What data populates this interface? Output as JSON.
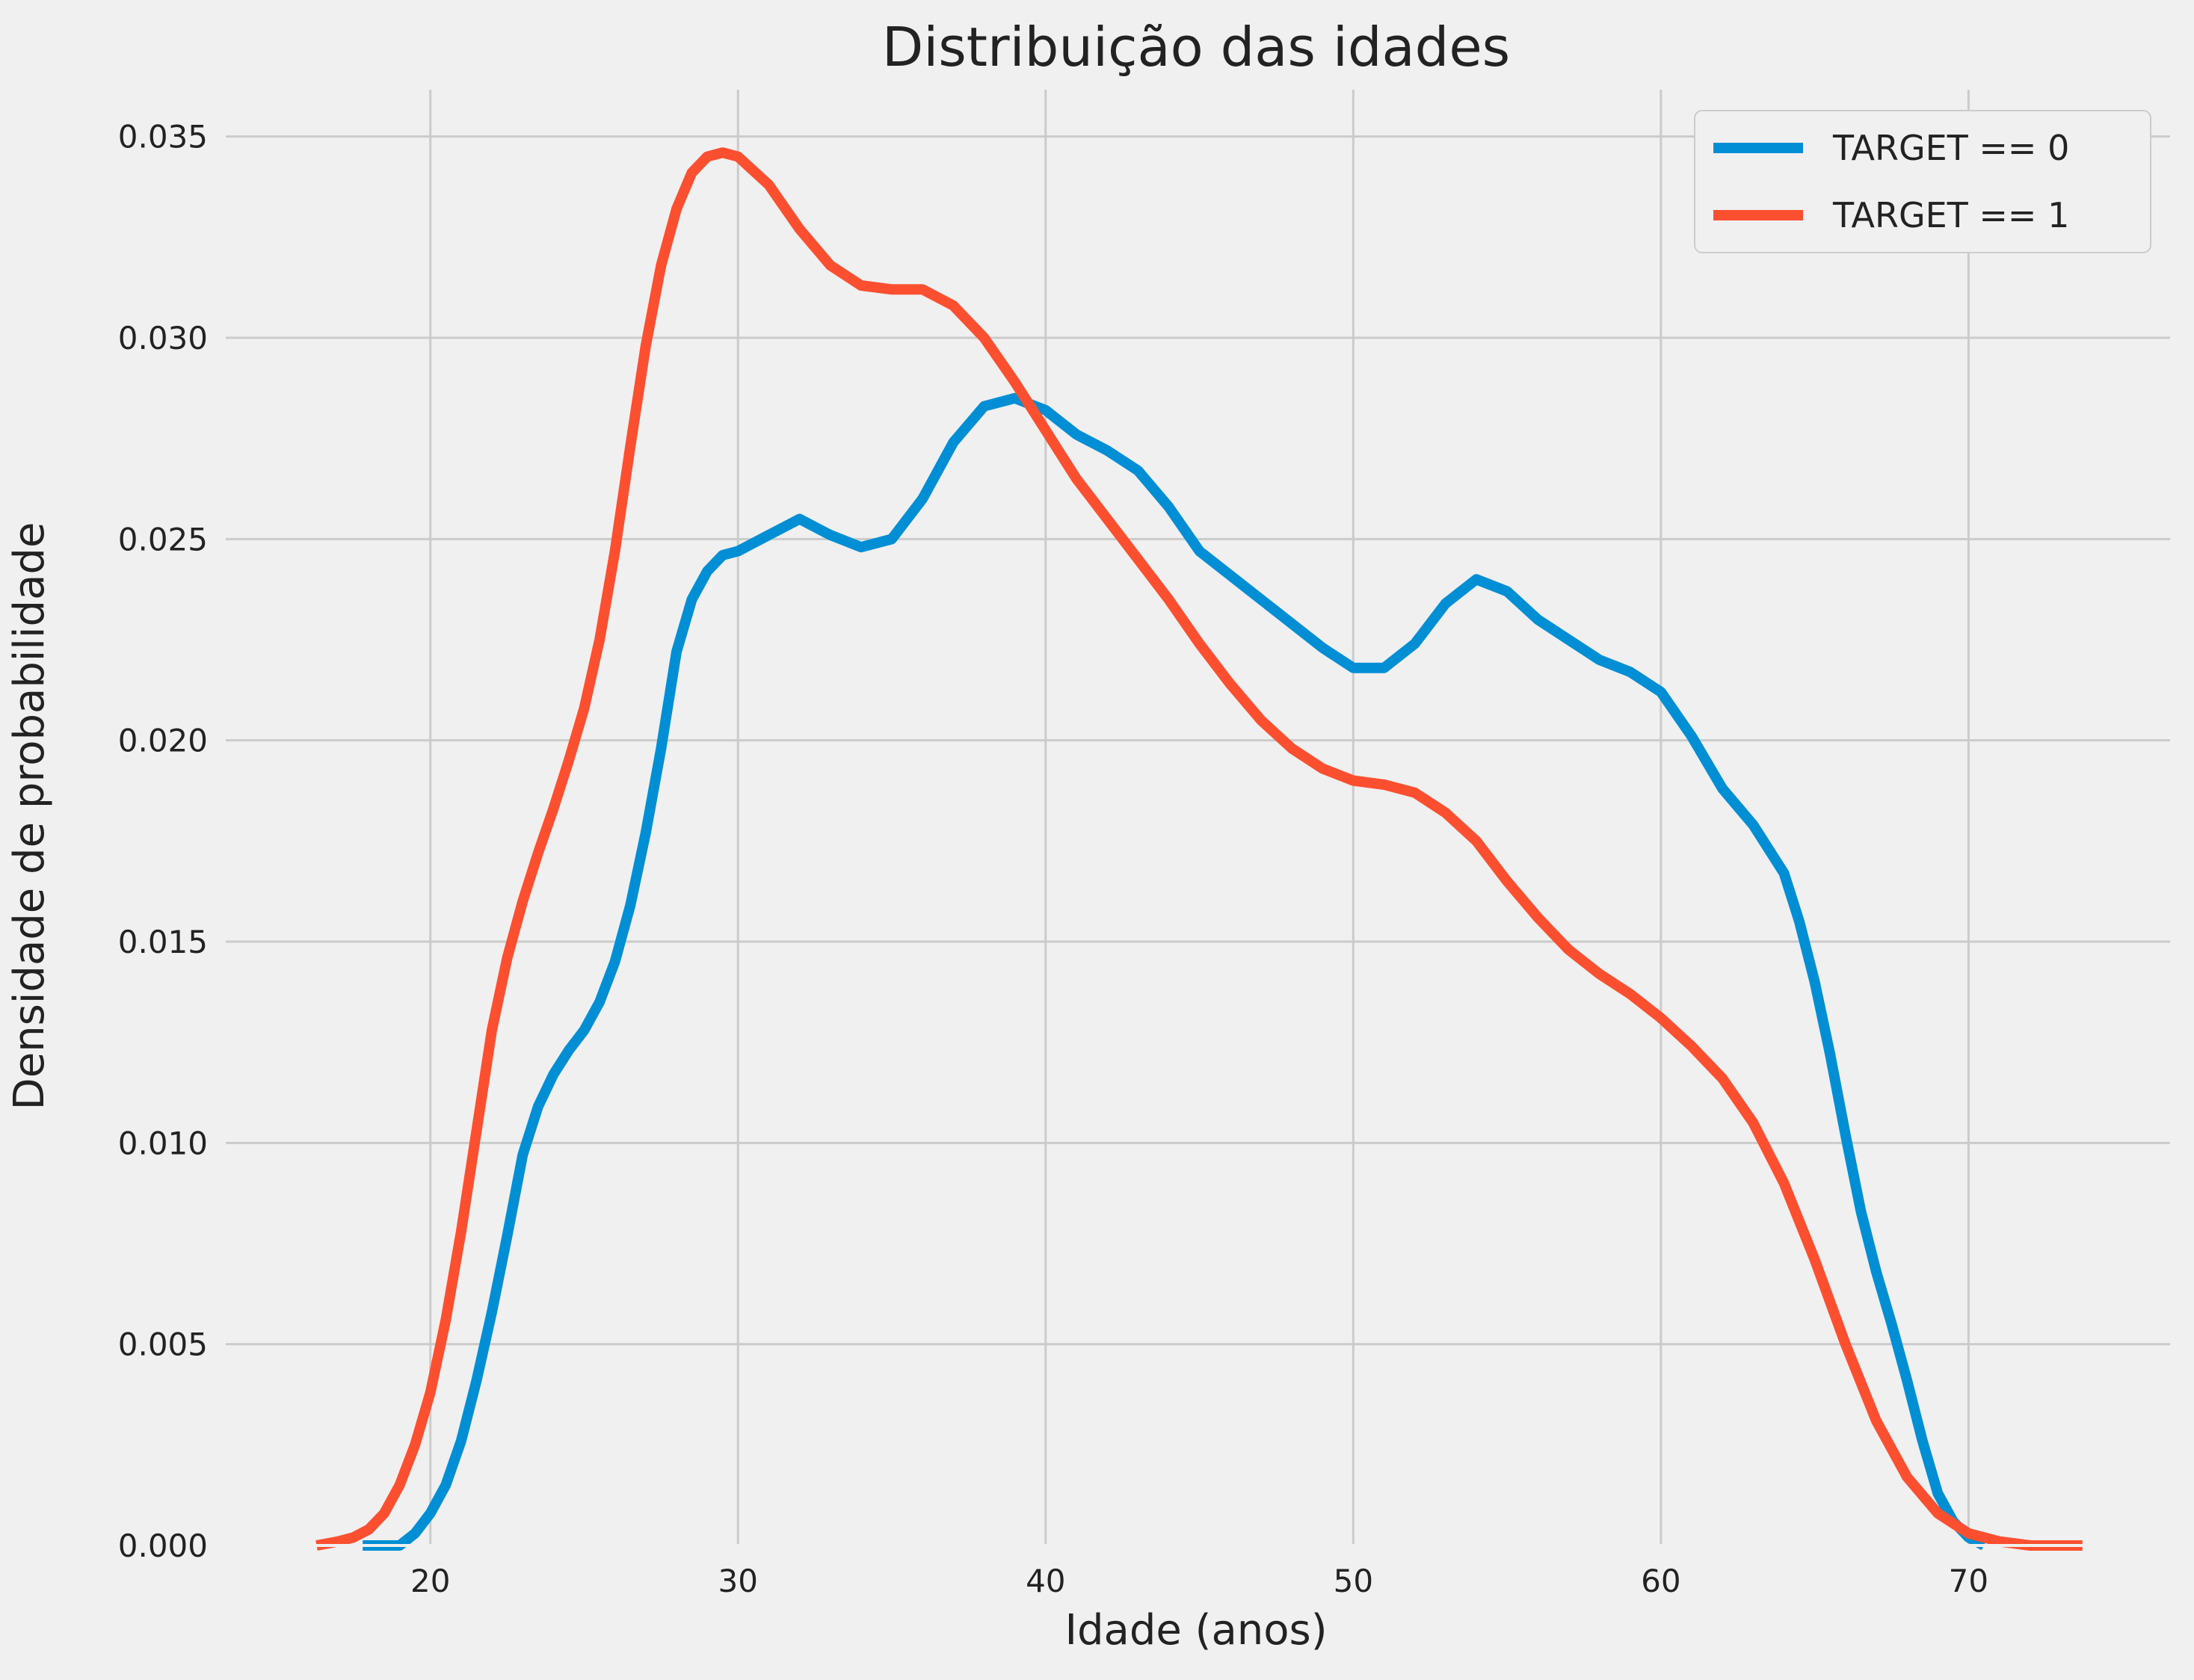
{
  "chart_data": {
    "type": "line",
    "title": "Distribuição das idades",
    "xlabel": "Idade (anos)",
    "ylabel": "Densidade de probabilidade",
    "xlim": [
      13.3,
      76.6
    ],
    "ylim": [
      0,
      0.0362
    ],
    "xticks": [
      20,
      30,
      40,
      50,
      60,
      70
    ],
    "xtick_labels": [
      "20",
      "30",
      "40",
      "50",
      "60",
      "70"
    ],
    "yticks": [
      0,
      0.005,
      0.01,
      0.015,
      0.02,
      0.025,
      0.03,
      0.035
    ],
    "ytick_labels": [
      "0.000",
      "0.005",
      "0.010",
      "0.015",
      "0.020",
      "0.025",
      "0.030",
      "0.035"
    ],
    "grid": true,
    "legend_position": "top-right",
    "colors": {
      "background": "#f0f0f0",
      "grid": "#cbcbcb"
    },
    "series": [
      {
        "name": "TARGET == 0",
        "color": "#008fd5",
        "points": [
          [
            17.8,
            0.0
          ],
          [
            19,
            0.0
          ],
          [
            19.5,
            0.0003
          ],
          [
            20,
            0.0008
          ],
          [
            20.5,
            0.0015
          ],
          [
            21,
            0.0026
          ],
          [
            21.5,
            0.0041
          ],
          [
            22,
            0.0058
          ],
          [
            22.5,
            0.0077
          ],
          [
            23,
            0.0097
          ],
          [
            23.5,
            0.0109
          ],
          [
            24,
            0.0117
          ],
          [
            24.5,
            0.0123
          ],
          [
            25,
            0.0128
          ],
          [
            25.5,
            0.0135
          ],
          [
            26,
            0.0145
          ],
          [
            26.5,
            0.0159
          ],
          [
            27,
            0.0177
          ],
          [
            27.5,
            0.0198
          ],
          [
            28,
            0.0222
          ],
          [
            28.5,
            0.0235
          ],
          [
            29,
            0.0242
          ],
          [
            29.5,
            0.0246
          ],
          [
            30,
            0.0247
          ],
          [
            31,
            0.0251
          ],
          [
            32,
            0.0255
          ],
          [
            33,
            0.0251
          ],
          [
            34,
            0.0248
          ],
          [
            35,
            0.025
          ],
          [
            36,
            0.026
          ],
          [
            37,
            0.0274
          ],
          [
            38,
            0.0283
          ],
          [
            39,
            0.0285
          ],
          [
            40,
            0.0282
          ],
          [
            41,
            0.0276
          ],
          [
            42,
            0.0272
          ],
          [
            43,
            0.0267
          ],
          [
            44,
            0.0258
          ],
          [
            45,
            0.0247
          ],
          [
            46,
            0.0241
          ],
          [
            47,
            0.0235
          ],
          [
            48,
            0.0229
          ],
          [
            49,
            0.0223
          ],
          [
            50,
            0.0218
          ],
          [
            51,
            0.0218
          ],
          [
            52,
            0.0224
          ],
          [
            53,
            0.0234
          ],
          [
            54,
            0.024
          ],
          [
            55,
            0.0237
          ],
          [
            56,
            0.023
          ],
          [
            57,
            0.0225
          ],
          [
            58,
            0.022
          ],
          [
            59,
            0.0217
          ],
          [
            60,
            0.0212
          ],
          [
            61,
            0.0201
          ],
          [
            62,
            0.0188
          ],
          [
            63,
            0.0179
          ],
          [
            64,
            0.0167
          ],
          [
            64.5,
            0.0155
          ],
          [
            65,
            0.014
          ],
          [
            65.5,
            0.0122
          ],
          [
            66,
            0.0102
          ],
          [
            66.5,
            0.0083
          ],
          [
            67,
            0.0068
          ],
          [
            67.5,
            0.0055
          ],
          [
            68,
            0.0041
          ],
          [
            68.5,
            0.0026
          ],
          [
            69,
            0.0013
          ],
          [
            69.5,
            0.0006
          ],
          [
            70,
            0.0002
          ],
          [
            70.5,
            0.0
          ]
        ]
      },
      {
        "name": "TARGET == 1",
        "color": "#fc4f30",
        "points": [
          [
            16.3,
            0.0
          ],
          [
            17,
            0.0001
          ],
          [
            17.5,
            0.0002
          ],
          [
            18,
            0.0004
          ],
          [
            18.5,
            0.0008
          ],
          [
            19,
            0.0015
          ],
          [
            19.5,
            0.0025
          ],
          [
            20,
            0.0038
          ],
          [
            20.5,
            0.0056
          ],
          [
            21,
            0.0078
          ],
          [
            21.5,
            0.0103
          ],
          [
            22,
            0.0128
          ],
          [
            22.5,
            0.0146
          ],
          [
            23,
            0.016
          ],
          [
            23.5,
            0.0172
          ],
          [
            24,
            0.0183
          ],
          [
            24.5,
            0.0195
          ],
          [
            25,
            0.0208
          ],
          [
            25.5,
            0.0225
          ],
          [
            26,
            0.0247
          ],
          [
            26.5,
            0.0273
          ],
          [
            27,
            0.0298
          ],
          [
            27.5,
            0.0318
          ],
          [
            28,
            0.0332
          ],
          [
            28.5,
            0.0341
          ],
          [
            29,
            0.0345
          ],
          [
            29.5,
            0.0346
          ],
          [
            30,
            0.0345
          ],
          [
            31,
            0.0338
          ],
          [
            32,
            0.0327
          ],
          [
            33,
            0.0318
          ],
          [
            34,
            0.0313
          ],
          [
            35,
            0.0312
          ],
          [
            36,
            0.0312
          ],
          [
            37,
            0.0308
          ],
          [
            38,
            0.03
          ],
          [
            39,
            0.0289
          ],
          [
            40,
            0.0277
          ],
          [
            41,
            0.0265
          ],
          [
            42,
            0.0255
          ],
          [
            43,
            0.0245
          ],
          [
            44,
            0.0235
          ],
          [
            45,
            0.0224
          ],
          [
            46,
            0.0214
          ],
          [
            47,
            0.0205
          ],
          [
            48,
            0.0198
          ],
          [
            49,
            0.0193
          ],
          [
            50,
            0.019
          ],
          [
            51,
            0.0189
          ],
          [
            52,
            0.0187
          ],
          [
            53,
            0.0182
          ],
          [
            54,
            0.0175
          ],
          [
            55,
            0.0165
          ],
          [
            56,
            0.0156
          ],
          [
            57,
            0.0148
          ],
          [
            58,
            0.0142
          ],
          [
            59,
            0.0137
          ],
          [
            60,
            0.0131
          ],
          [
            61,
            0.0124
          ],
          [
            62,
            0.0116
          ],
          [
            63,
            0.0105
          ],
          [
            64,
            0.009
          ],
          [
            65,
            0.0071
          ],
          [
            66,
            0.005
          ],
          [
            67,
            0.0031
          ],
          [
            68,
            0.0017
          ],
          [
            69,
            0.0008
          ],
          [
            70,
            0.0003
          ],
          [
            71,
            0.0001
          ],
          [
            72,
            0.0
          ],
          [
            73.7,
            0.0
          ]
        ]
      }
    ]
  }
}
